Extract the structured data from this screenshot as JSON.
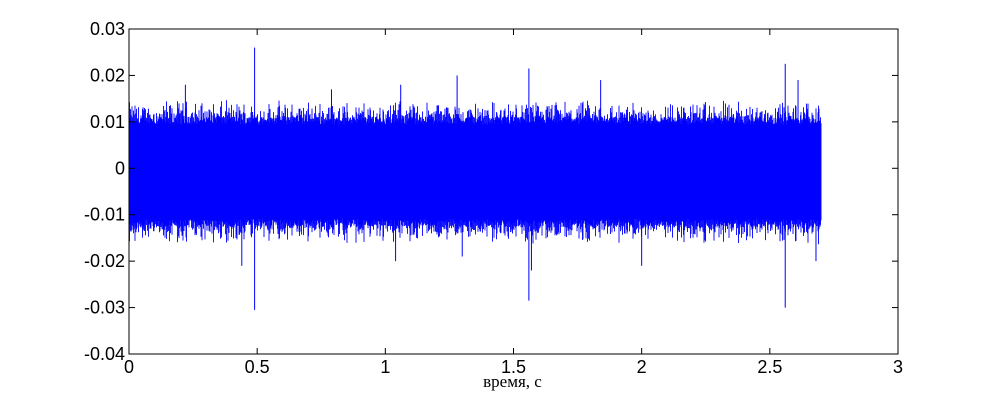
{
  "chart_data": {
    "type": "line",
    "title": "",
    "xlabel": "время, с",
    "ylabel": "",
    "xlim": [
      0,
      3
    ],
    "ylim": [
      -0.04,
      0.03
    ],
    "xticks": [
      0,
      0.5,
      1,
      1.5,
      2,
      2.5,
      3
    ],
    "xtick_labels": [
      "0",
      "0.5",
      "1",
      "1.5",
      "2",
      "2.5",
      "3"
    ],
    "yticks": [
      -0.04,
      -0.03,
      -0.02,
      -0.01,
      0,
      0.01,
      0.02,
      0.03
    ],
    "ytick_labels": [
      "-0.04",
      "-0.03",
      "-0.02",
      "-0.01",
      "0",
      "0.01",
      "0.02",
      "0.03"
    ],
    "grid": false,
    "series": [
      {
        "color": "#0000ff",
        "signal": {
          "t_start": 0,
          "t_end": 2.7,
          "core_amplitude": 0.011,
          "envelope_amplitude": 0.015
        },
        "spikes": [
          {
            "t": 0.49,
            "value": 0.026
          },
          {
            "t": 0.49,
            "value": -0.0305
          },
          {
            "t": 0.44,
            "value": -0.021
          },
          {
            "t": 0.22,
            "value": 0.018
          },
          {
            "t": 0.79,
            "value": 0.017
          },
          {
            "t": 1.04,
            "value": -0.02
          },
          {
            "t": 1.06,
            "value": 0.018
          },
          {
            "t": 1.28,
            "value": 0.02
          },
          {
            "t": 1.3,
            "value": -0.019
          },
          {
            "t": 1.56,
            "value": 0.0215
          },
          {
            "t": 1.56,
            "value": -0.0285
          },
          {
            "t": 1.57,
            "value": -0.022
          },
          {
            "t": 1.84,
            "value": 0.019
          },
          {
            "t": 2.0,
            "value": -0.021
          },
          {
            "t": 2.56,
            "value": 0.0225
          },
          {
            "t": 2.56,
            "value": -0.03
          },
          {
            "t": 2.61,
            "value": 0.019
          },
          {
            "t": 2.68,
            "value": -0.02
          }
        ]
      }
    ]
  }
}
